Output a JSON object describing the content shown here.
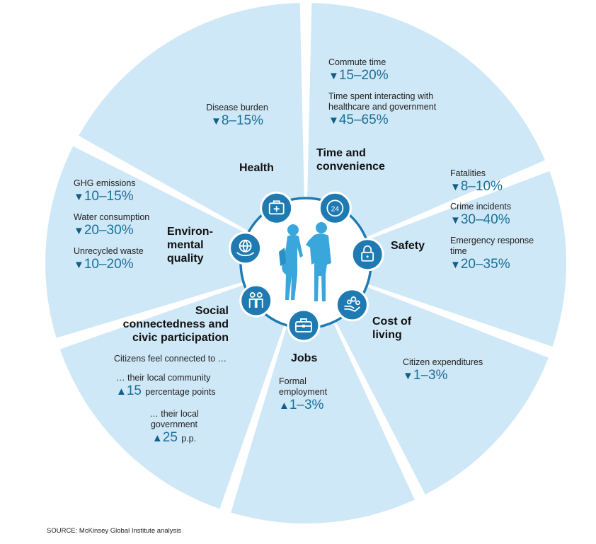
{
  "categories": {
    "health": "Health",
    "time": "Time and convenience",
    "safety": "Safety",
    "cost": "Cost of living",
    "jobs": "Jobs",
    "social": "Social connectedness and civic participation",
    "environment": "Environ-mental quality"
  },
  "category_lines": {
    "time": [
      "Time and",
      "convenience"
    ],
    "cost": [
      "Cost of",
      "living"
    ],
    "social": [
      "Social",
      "connectedness and",
      "civic participation"
    ],
    "environment": [
      "Environ-",
      "mental",
      "quality"
    ]
  },
  "metrics": {
    "disease_burden": {
      "label": "Disease burden",
      "direction": "down",
      "value": "8–15%"
    },
    "commute_time": {
      "label": "Commute time",
      "direction": "down",
      "value": "15–20%"
    },
    "interacting_time": {
      "label": "Time spent interacting with healthcare and government",
      "label_lines": [
        "Time spent interacting with",
        "healthcare and government"
      ],
      "direction": "down",
      "value": "45–65%"
    },
    "fatalities": {
      "label": "Fatalities",
      "direction": "down",
      "value": "8–10%"
    },
    "crime": {
      "label": "Crime incidents",
      "direction": "down",
      "value": "30–40%"
    },
    "emergency": {
      "label": "Emergency response time",
      "label_lines": [
        "Emergency response",
        "time"
      ],
      "direction": "down",
      "value": "20–35%"
    },
    "expenditures": {
      "label": "Citizen expenditures",
      "direction": "down",
      "value": "1–3%"
    },
    "employment": {
      "label": "Formal employment",
      "label_lines": [
        "Formal",
        "employment"
      ],
      "direction": "up",
      "value": "1–3%"
    },
    "ghg": {
      "label": "GHG emissions",
      "direction": "down",
      "value": "10–15%"
    },
    "water": {
      "label": "Water consumption",
      "direction": "down",
      "value": "20–30%"
    },
    "waste": {
      "label": "Unrecycled waste",
      "direction": "down",
      "value": "10–20%"
    },
    "community": {
      "label": "… their local community",
      "direction": "up",
      "value": "15",
      "suffix": "percentage points"
    },
    "government": {
      "label": "… their local government",
      "label_lines": [
        "… their local",
        "government"
      ],
      "direction": "up",
      "value": "25",
      "suffix": "p.p."
    }
  },
  "citizens_connected": "Citizens feel connected to …",
  "triangles": {
    "down": "▼",
    "up": "▲"
  },
  "icons": [
    "first-aid-kit-icon",
    "24-hour-clock-icon",
    "padlock-icon",
    "hand-with-coins-icon",
    "briefcase-icon",
    "two-people-icon",
    "globe-in-hand-icon",
    "two-people-talking-with-phones-icon"
  ],
  "colors": {
    "wedge": "#cfe8f7",
    "accent": "#1b6f97",
    "icon": "#1f7ab1",
    "people": "#3aa7dc"
  },
  "source": "SOURCE:  McKinsey Global Institute analysis"
}
